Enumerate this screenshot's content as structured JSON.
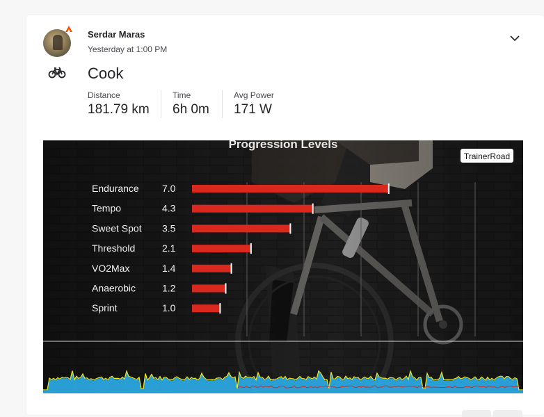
{
  "athlete": {
    "name": "Serdar Maras",
    "timestamp": "Yesterday at 1:00 PM",
    "avatar_icon": "avatar-photo"
  },
  "activity": {
    "title": "Cook",
    "sport_icon": "bike-icon"
  },
  "stats": [
    {
      "label": "Distance",
      "value": "181.79 km"
    },
    {
      "label": "Time",
      "value": "6h 0m"
    },
    {
      "label": "Avg Power",
      "value": "171 W"
    }
  ],
  "media": {
    "brand_badge": "TrainerRoad",
    "heading": "Progression Levels",
    "bar_color": "#d9281e",
    "power_fill_color": "#2aa7e0",
    "power_line_color": "#f2ea1f",
    "hr_line_color": "#d9281e"
  },
  "chart_data": {
    "type": "bar",
    "title": "Progression Levels",
    "categories": [
      "Endurance",
      "Tempo",
      "Sweet Spot",
      "Threshold",
      "VO2Max",
      "Anaerobic",
      "Sprint"
    ],
    "values": [
      7.0,
      4.3,
      3.5,
      2.1,
      1.4,
      1.2,
      1.0
    ],
    "value_labels": [
      "7.0",
      "4.3",
      "3.5",
      "2.1",
      "1.4",
      "1.2",
      "1.0"
    ],
    "xlim": [
      0,
      10
    ],
    "orientation": "horizontal"
  },
  "colors": {
    "accent": "#fc5200",
    "text": "#242428",
    "muted": "#494950"
  }
}
